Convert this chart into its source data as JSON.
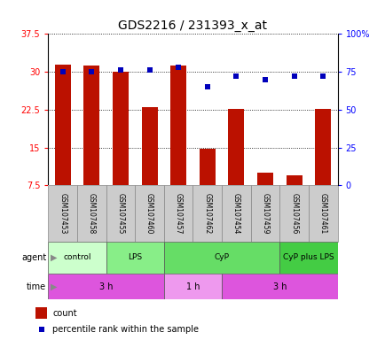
{
  "title": "GDS2216 / 231393_x_at",
  "samples": [
    "GSM107453",
    "GSM107458",
    "GSM107455",
    "GSM107460",
    "GSM107457",
    "GSM107462",
    "GSM107454",
    "GSM107459",
    "GSM107456",
    "GSM107461"
  ],
  "counts": [
    31.5,
    31.2,
    30.0,
    23.0,
    31.3,
    14.7,
    22.7,
    10.0,
    9.5,
    22.7
  ],
  "percentile_ranks": [
    75,
    75,
    76,
    76,
    78,
    65,
    72,
    70,
    72,
    72
  ],
  "ylim_left": [
    7.5,
    37.5
  ],
  "yticks_left": [
    7.5,
    15.0,
    22.5,
    30.0,
    37.5
  ],
  "yticklabels_left": [
    "7.5",
    "15",
    "22.5",
    "30",
    "37.5"
  ],
  "ylim_right": [
    0,
    100
  ],
  "yticks_right": [
    0,
    25,
    50,
    75,
    100
  ],
  "yticklabels_right": [
    "0",
    "25",
    "50",
    "75",
    "100%"
  ],
  "bar_color": "#bb1100",
  "dot_color": "#0000bb",
  "bar_width": 0.55,
  "agent_groups": [
    {
      "label": "control",
      "start": 0,
      "end": 2,
      "color": "#ccffcc"
    },
    {
      "label": "LPS",
      "start": 2,
      "end": 4,
      "color": "#88ee88"
    },
    {
      "label": "CyP",
      "start": 4,
      "end": 8,
      "color": "#66dd66"
    },
    {
      "label": "CyP plus LPS",
      "start": 8,
      "end": 10,
      "color": "#44cc44"
    }
  ],
  "time_groups": [
    {
      "label": "3 h",
      "start": 0,
      "end": 4
    },
    {
      "label": "1 h",
      "start": 4,
      "end": 6
    },
    {
      "label": "3 h",
      "start": 6,
      "end": 10
    }
  ],
  "time_color_dark": "#dd55dd",
  "time_color_light": "#ee99ee",
  "background_color": "#ffffff",
  "title_fontsize": 10,
  "tick_fontsize": 7,
  "sample_fontsize": 5.5,
  "row_fontsize": 7,
  "legend_fontsize": 7
}
